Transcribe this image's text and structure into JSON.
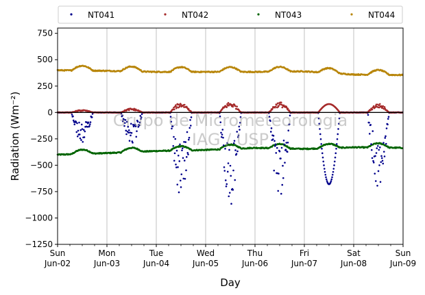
{
  "chart_data": {
    "type": "scatter",
    "title": "",
    "xlabel": "Day",
    "ylabel": "Radiation (Wm⁻²)",
    "ylim": [
      -1250,
      800
    ],
    "xlim": [
      "2019-06-02",
      "2019-06-09"
    ],
    "yticks": [
      "−1250",
      "−1000",
      "−750",
      "−500",
      "−250",
      "0",
      "250",
      "500",
      "750"
    ],
    "yticks_values": [
      -1250,
      -1000,
      -750,
      -500,
      -250,
      0,
      250,
      500,
      750
    ],
    "xticks": [
      {
        "date": "2019-06-02",
        "day": "Sun",
        "label": "Jun-02"
      },
      {
        "date": "2019-06-03",
        "day": "Mon",
        "label": "Jun-03"
      },
      {
        "date": "2019-06-04",
        "day": "Tue",
        "label": "Jun-04"
      },
      {
        "date": "2019-06-05",
        "day": "Wed",
        "label": "Jun-05"
      },
      {
        "date": "2019-06-06",
        "day": "Thu",
        "label": "Jun-06"
      },
      {
        "date": "2019-06-07",
        "day": "Fri",
        "label": "Jun-07"
      },
      {
        "date": "2019-06-08",
        "day": "Sat",
        "label": "Jun-08"
      },
      {
        "date": "2019-06-09",
        "day": "Sun",
        "label": "Jun-09"
      }
    ],
    "grid": "vertical",
    "legend": "top, outside, 4 columns",
    "watermark": [
      "Grupo de Micrometeorologia",
      "IAG / USP"
    ],
    "series": [
      {
        "name": "NT041",
        "color": "#00008b",
        "daily_minimum": [
          -290,
          -300,
          -820,
          -890,
          -860,
          -680,
          -720
        ],
        "night_value": 0
      },
      {
        "name": "NT042",
        "color": "#a52a2a",
        "daily_maximum": [
          25,
          40,
          95,
          100,
          100,
          80,
          85
        ],
        "night_value": 0
      },
      {
        "name": "NT043",
        "color": "#006400",
        "baseline_by_day": [
          -400,
          -385,
          -365,
          -355,
          -335,
          -345,
          -330,
          -335
        ],
        "daytime_rise": 40
      },
      {
        "name": "NT044",
        "color": "#b8860b",
        "baseline_by_day": [
          400,
          395,
          385,
          385,
          385,
          390,
          360,
          355
        ],
        "daytime_rise": 45
      }
    ]
  }
}
